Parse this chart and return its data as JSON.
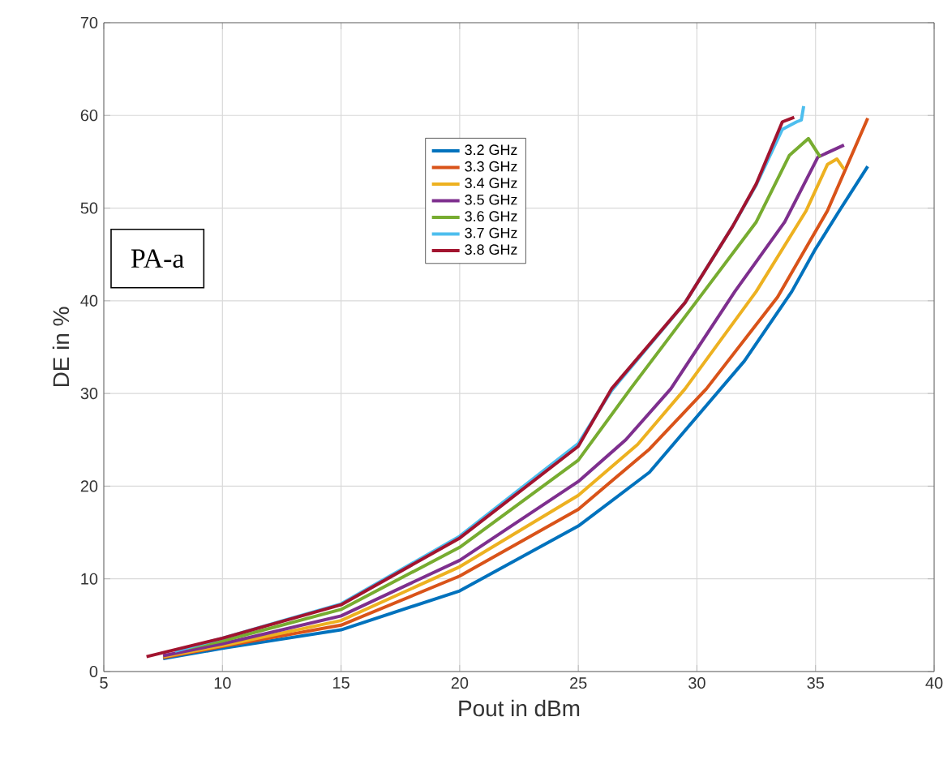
{
  "chart_data": {
    "type": "line",
    "xlabel": "Pout in dBm",
    "ylabel": "DE in %",
    "xlim": [
      5,
      40
    ],
    "ylim": [
      0,
      70
    ],
    "xticks": [
      5,
      10,
      15,
      20,
      25,
      30,
      35,
      40
    ],
    "yticks": [
      0,
      10,
      20,
      30,
      40,
      50,
      60,
      70
    ],
    "grid": true,
    "legend": "top",
    "annotations": [
      "PA-a"
    ],
    "series": [
      {
        "name": "3.2 GHz",
        "color": "#0072bd",
        "x": [
          7.5,
          10,
          15,
          20,
          25,
          28,
          30,
          32,
          34,
          35,
          36,
          37.2
        ],
        "values": [
          1.4,
          2.5,
          4.5,
          8.7,
          15.7,
          21.5,
          27.5,
          33.5,
          41,
          45.6,
          49.7,
          54.5
        ]
      },
      {
        "name": "3.3 GHz",
        "color": "#d95319",
        "x": [
          7.5,
          10,
          15,
          20,
          25,
          28,
          30.4,
          33.4,
          35.5,
          37.2
        ],
        "values": [
          1.5,
          2.7,
          5,
          10.3,
          17.5,
          24,
          30.5,
          40.4,
          49.7,
          59.7
        ]
      },
      {
        "name": "3.4 GHz",
        "color": "#edb120",
        "x": [
          7.5,
          10,
          15,
          20,
          25,
          27.5,
          29.5,
          32.5,
          34.6,
          35.5,
          35.9,
          36.2
        ],
        "values": [
          1.6,
          2.8,
          5.5,
          11.3,
          19,
          24.5,
          30.5,
          41,
          49.7,
          54.7,
          55.3,
          54.2
        ]
      },
      {
        "name": "3.5 GHz",
        "color": "#7e2f8e",
        "x": [
          7.5,
          10,
          15,
          20,
          25,
          27,
          28.9,
          31.6,
          33.7,
          35.1,
          36.2
        ],
        "values": [
          1.7,
          3,
          6,
          12,
          20.5,
          25,
          30.5,
          41,
          48.5,
          55.5,
          56.8
        ]
      },
      {
        "name": "3.6 GHz",
        "color": "#77ac30",
        "x": [
          8.5,
          10,
          15,
          20,
          25,
          27.2,
          30.3,
          32.5,
          33.9,
          34.7,
          35.2
        ],
        "values": [
          2.5,
          3.3,
          6.7,
          13.4,
          22.8,
          30.5,
          41,
          48.5,
          55.7,
          57.5,
          55.5
        ]
      },
      {
        "name": "3.7 GHz",
        "color": "#4dbeee",
        "x": [
          8,
          10,
          15,
          20,
          25,
          26.4,
          29.5,
          31.5,
          32.5,
          33.6,
          34.2,
          34.4,
          34.5
        ],
        "values": [
          2.2,
          3.6,
          7.3,
          14.6,
          24.6,
          30.3,
          39.8,
          48,
          52.5,
          58.5,
          59.3,
          59.5,
          61
        ]
      },
      {
        "name": "3.8 GHz",
        "color": "#a2142f",
        "x": [
          6.8,
          10,
          15,
          20,
          25,
          26.4,
          29.5,
          31.5,
          32.5,
          33.6,
          34.1
        ],
        "values": [
          1.6,
          3.6,
          7.2,
          14.4,
          24.3,
          30.5,
          39.8,
          48,
          52.6,
          59.3,
          59.8
        ]
      }
    ]
  }
}
